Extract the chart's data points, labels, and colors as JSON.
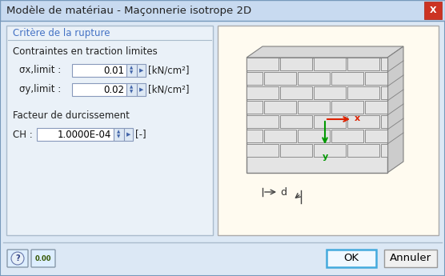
{
  "title": "Modèle de matériau - Maçonnerie isotrope 2D",
  "dialog_bg": "#dce8f5",
  "title_bar_bg": "#c8daf0",
  "close_btn_color": "#c0392b",
  "group_title": "Critère de la rupture",
  "group_title_color": "#4472c4",
  "section1_title": "Contraintes en traction limites",
  "label1": "σx,limit :",
  "value1": "0.01",
  "unit1": "[kN/cm²]",
  "label2": "σy,limit :",
  "value2": "0.02",
  "unit2": "[kN/cm²]",
  "section2_title": "Facteur de durcissement",
  "label3": "CH :",
  "value3": "1.0000E-04",
  "unit3": "[-]",
  "ok_btn": "OK",
  "cancel_btn": "Annuler",
  "left_panel_bg": "#eaf1f8",
  "right_panel_bg": "#fffbf0",
  "input_bg": "#ffffff",
  "input_border": "#8899bb",
  "spinner_bg": "#dde8f4",
  "spinner_arrow": "#4466aa",
  "brick_face_color": "#e4e4e4",
  "brick_side_color": "#cccccc",
  "brick_top_color": "#d8d8d8",
  "brick_border": "#808080",
  "axis_x_color": "#dd2200",
  "axis_y_color": "#009900",
  "depth_color": "#444444"
}
